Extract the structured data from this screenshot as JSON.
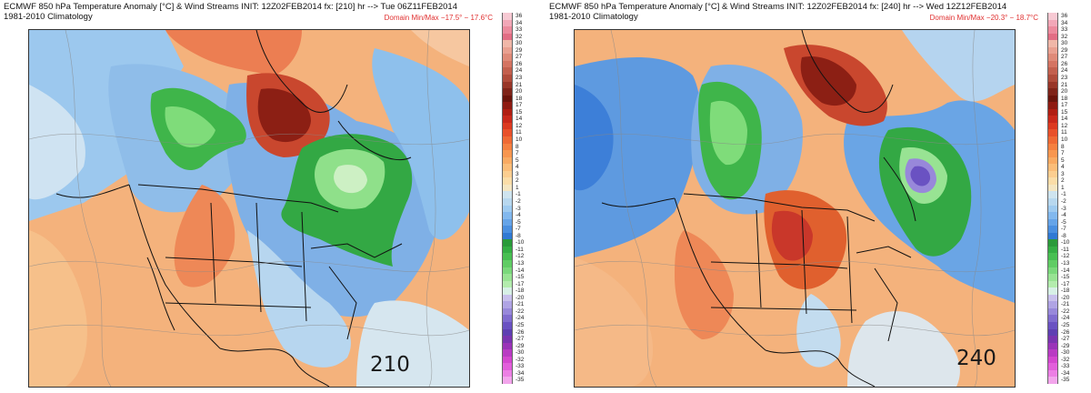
{
  "panels": [
    {
      "title": "ECMWF 850 hPa Temperature Anomaly [°C] & Wind Streams INIT: 12Z02FEB2014 fx: [210] hr --> Tue 06Z11FEB2014",
      "subtitle": "1981-2010 Climatology",
      "domain_minmax": "Domain Min/Max −17.5° −  17.6°C",
      "frame_label": "210"
    },
    {
      "title": "ECMWF 850 hPa Temperature Anomaly [°C] & Wind Streams INIT: 12Z02FEB2014 fx: [240] hr --> Wed 12Z12FEB2014",
      "subtitle": "1981-2010 Climatology",
      "domain_minmax": "Domain Min/Max −20.3° −  18.7°C",
      "frame_label": "240"
    }
  ],
  "colorbar": {
    "labels": [
      "36",
      "34",
      "33",
      "32",
      "30",
      "29",
      "27",
      "26",
      "24",
      "23",
      "21",
      "20",
      "18",
      "17",
      "15",
      "14",
      "12",
      "11",
      "10",
      "8",
      "7",
      "5",
      "4",
      "3",
      "2",
      "1",
      "-1",
      "-2",
      "-3",
      "-4",
      "-5",
      "-7",
      "-8",
      "-10",
      "-11",
      "-12",
      "-13",
      "-14",
      "-15",
      "-17",
      "-18",
      "-20",
      "-21",
      "-22",
      "-24",
      "-25",
      "-26",
      "-27",
      "-29",
      "-30",
      "-32",
      "-33",
      "-34",
      "-35"
    ],
    "colors": [
      "#f7c9d3",
      "#f2a7b7",
      "#ec8a9d",
      "#e26d84",
      "#f0b7a8",
      "#e9a090",
      "#df8a78",
      "#d47462",
      "#c3604e",
      "#b04c3b",
      "#983628",
      "#7f2419",
      "#6a150c",
      "#8e1b12",
      "#b01e12",
      "#c9281a",
      "#dc3a20",
      "#e8502a",
      "#ef6934",
      "#f58040",
      "#f8964f",
      "#f9aa62",
      "#fbbd79",
      "#fcce90",
      "#fbdda8",
      "#f5e6c2",
      "#cfe4ef",
      "#b8d8ef",
      "#9fcbf0",
      "#82b8ee",
      "#66a4e8",
      "#4a8fe0",
      "#3079d4",
      "#2a9a3a",
      "#35ae44",
      "#48bf52",
      "#60cc64",
      "#7ad87b",
      "#98e393",
      "#b3ecad",
      "#d7f0e6",
      "#c8c0ec",
      "#b0a4e4",
      "#9888da",
      "#806ccf",
      "#6a52c2",
      "#5e3fb2",
      "#7a34b0",
      "#9a34b8",
      "#b93bc3",
      "#d447cf",
      "#e25fdb",
      "#ec7fe4",
      "#f3a5ec"
    ]
  }
}
